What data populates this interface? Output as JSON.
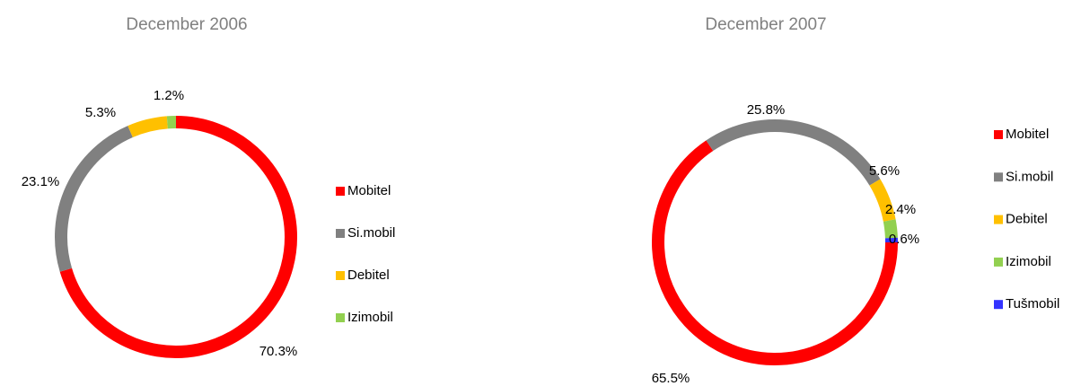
{
  "chart_data": [
    {
      "type": "donut",
      "title": "December 2006",
      "categories": [
        "Mobitel",
        "Si.mobil",
        "Debitel",
        "Izimobil"
      ],
      "values": [
        70.3,
        23.1,
        5.3,
        1.2
      ],
      "value_labels": [
        "70.3%",
        "23.1%",
        "5.3%",
        "1.2%"
      ],
      "colors": [
        "#ff0000",
        "#808080",
        "#ffc000",
        "#92d050"
      ],
      "legend": "right"
    },
    {
      "type": "donut",
      "title": "December 2007",
      "categories": [
        "Mobitel",
        "Si.mobil",
        "Debitel",
        "Izimobil",
        "Tušmobil"
      ],
      "values": [
        65.5,
        25.8,
        5.6,
        2.4,
        0.6
      ],
      "value_labels": [
        "65.5%",
        "25.8%",
        "5.6%",
        "2.4%",
        "0.6%"
      ],
      "colors": [
        "#ff0000",
        "#808080",
        "#ffc000",
        "#92d050",
        "#3333ff"
      ],
      "legend": "right"
    }
  ]
}
